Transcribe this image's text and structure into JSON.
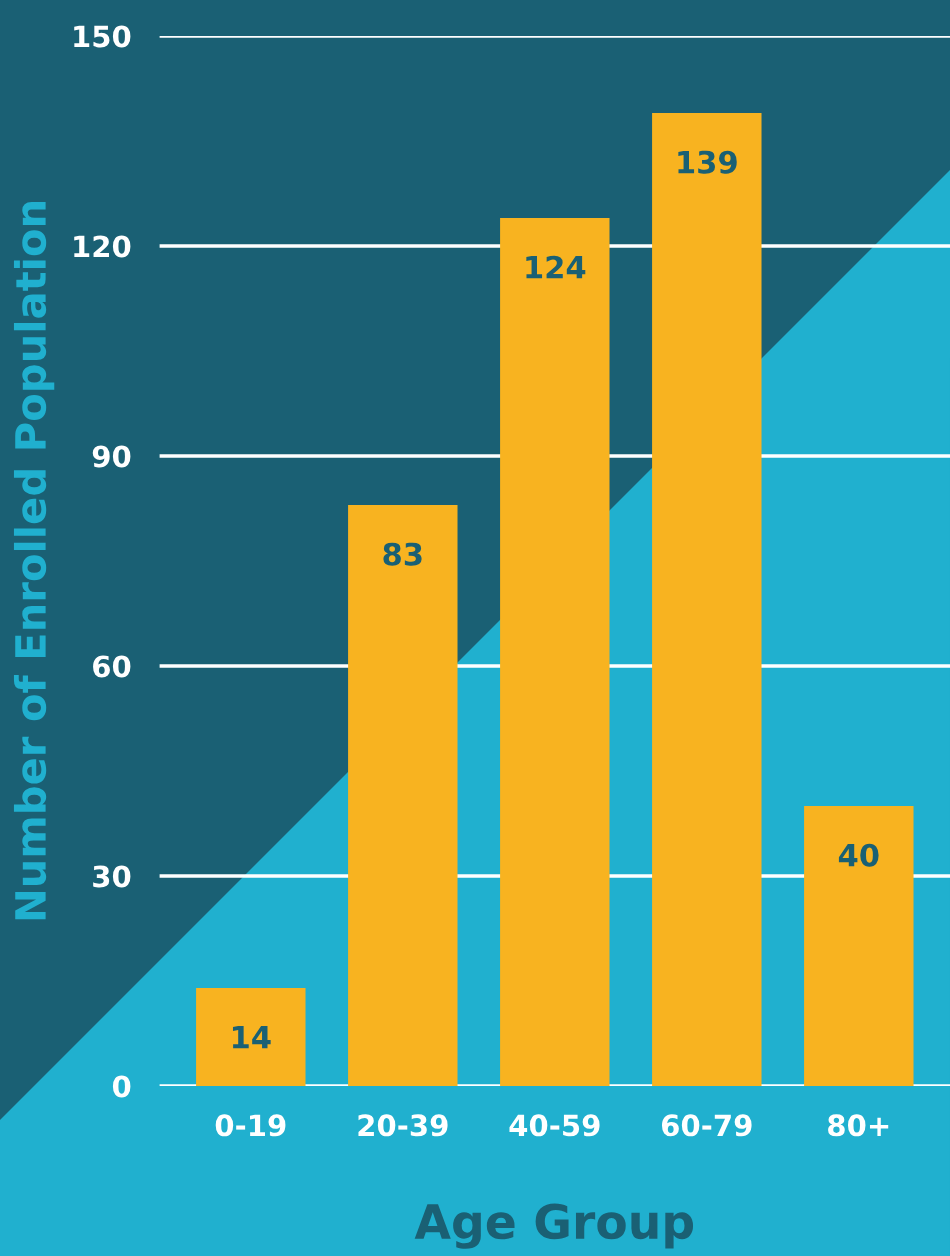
{
  "chart_data": {
    "type": "bar",
    "xlabel": "Age Group",
    "ylabel": "Number of Enrolled Population",
    "categories": [
      "0-19",
      "20-39",
      "40-59",
      "60-79",
      "80+"
    ],
    "values": [
      14,
      83,
      124,
      139,
      40
    ],
    "color": "#f8b320",
    "ylim": [
      0,
      150
    ],
    "yticks": [
      0,
      30,
      60,
      90,
      120,
      150
    ],
    "grid": "y",
    "data_labels": true
  }
}
